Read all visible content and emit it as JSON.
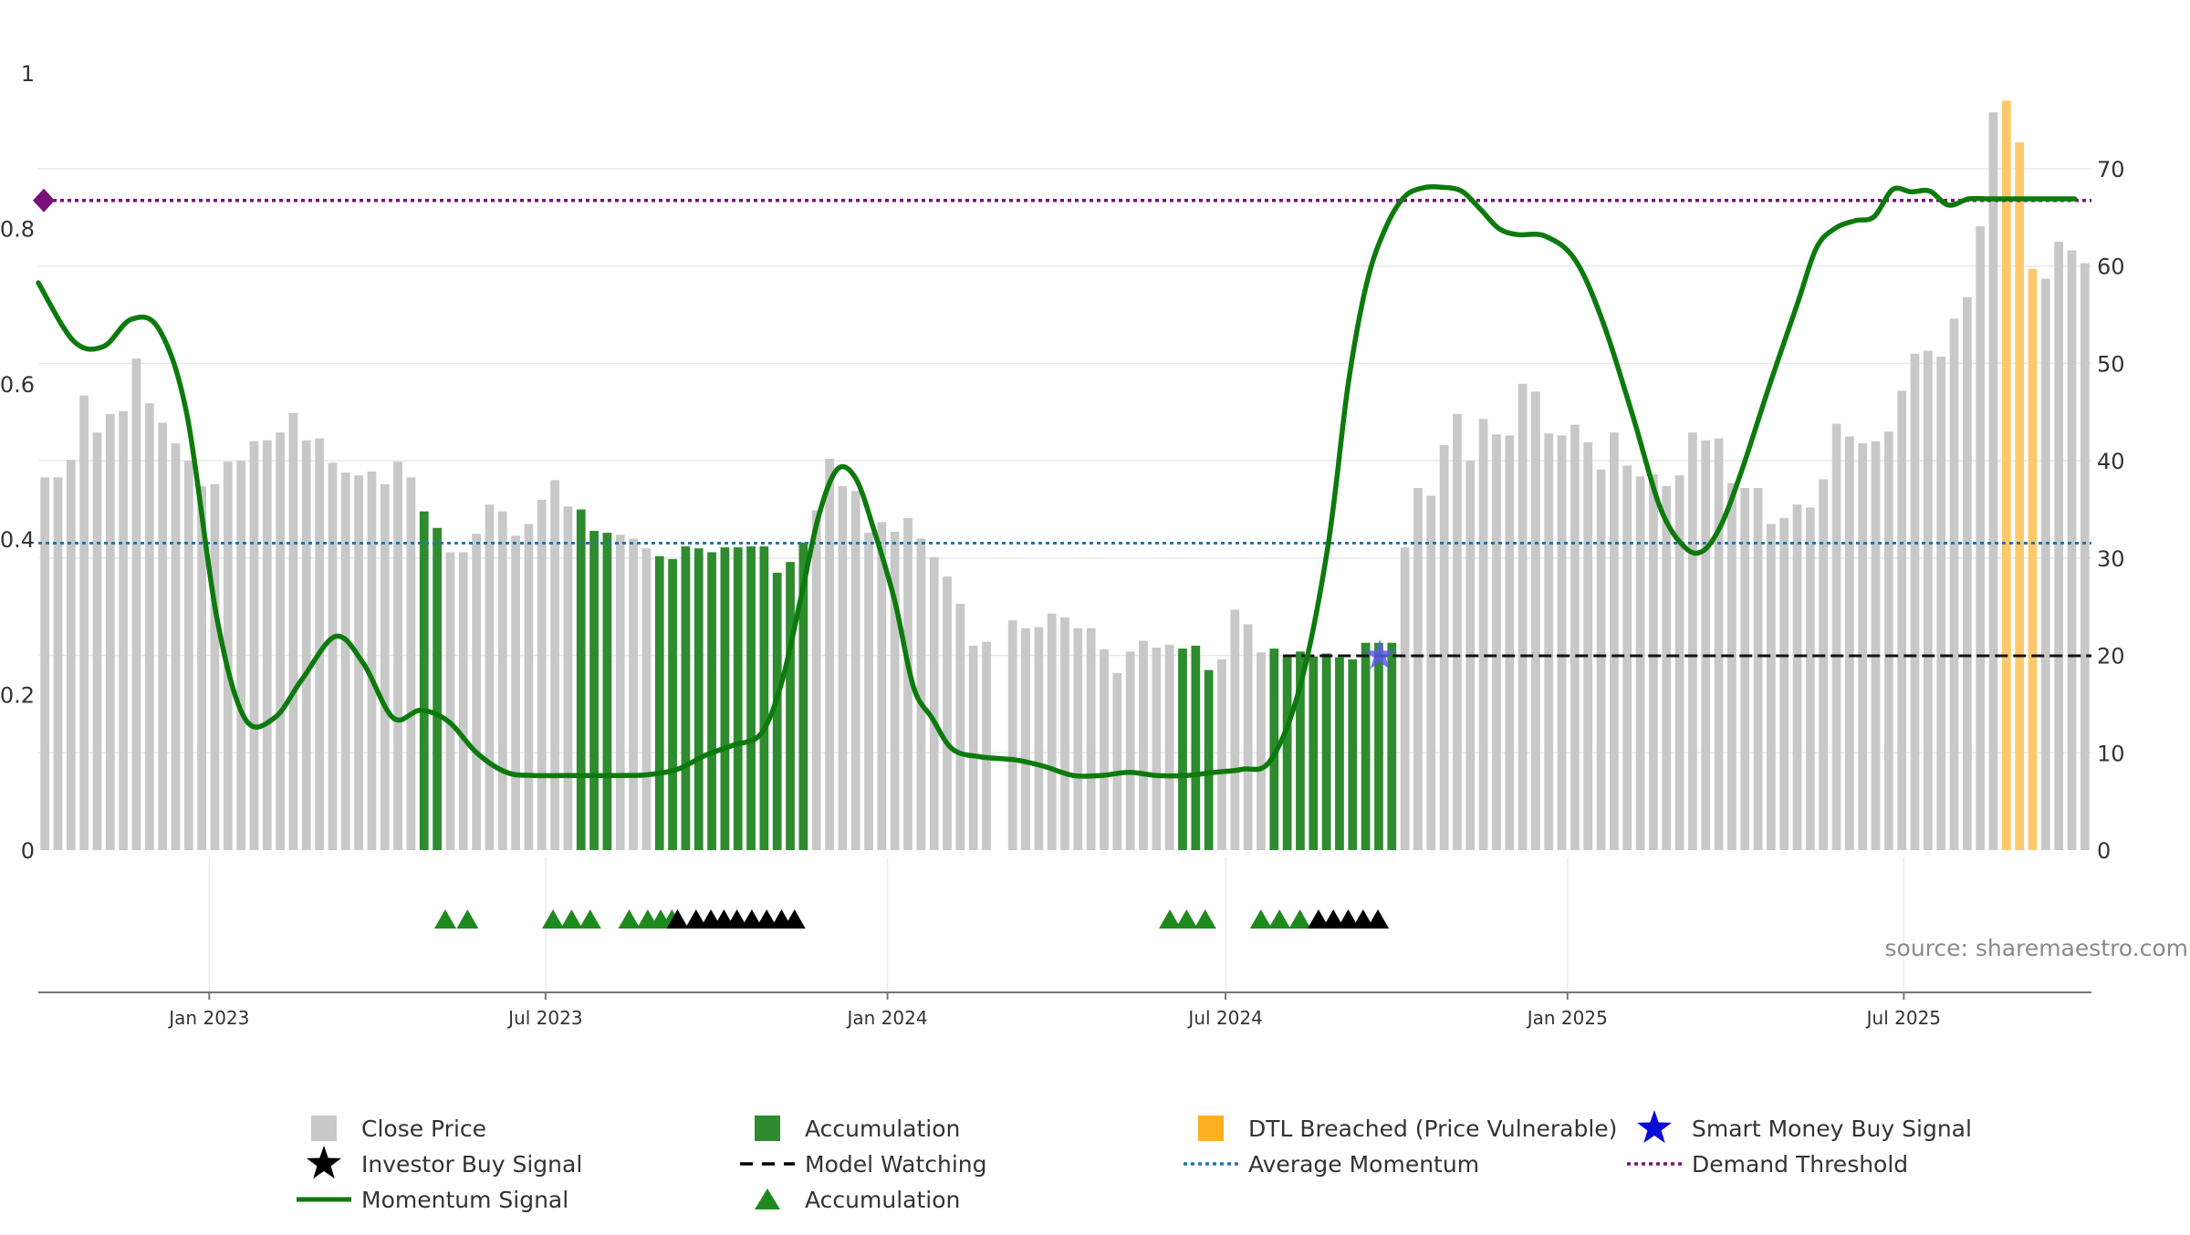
{
  "chart_data": {
    "type": "bar",
    "source_text": "source: sharemaestro.com",
    "axes": {
      "left": {
        "ticks": [
          "0",
          "0.2",
          "0.4",
          "0.6",
          "0.8",
          "1"
        ],
        "range": [
          0,
          1
        ]
      },
      "right": {
        "ticks": [
          "0",
          "10",
          "20",
          "30",
          "40",
          "50",
          "60",
          "70"
        ],
        "range": [
          0,
          80
        ]
      },
      "x_ticks": [
        "Jan 2023",
        "Jul 2023",
        "Jan 2024",
        "Jul 2024",
        "Jan 2025",
        "Jul 2025"
      ],
      "x_start": "2022-10-01",
      "x_end": "2025-10-10"
    },
    "colors": {
      "close_price": "#c8c8c8",
      "accumulation": "#2e8b2e",
      "dtl_breached": "#ffc96b",
      "momentum": "#0c7a0c",
      "average_momentum": "#1f77b4",
      "demand_threshold": "#7a1178",
      "smart_money": "#0b0bd6",
      "investor_signal": "#000000"
    },
    "close_price": [
      38.3,
      38.3,
      40.1,
      46.7,
      42.9,
      44.8,
      45.1,
      50.5,
      45.9,
      43.9,
      41.8,
      40.0,
      37.4,
      37.6,
      39.9,
      40.0,
      42.0,
      42.1,
      42.9,
      44.9,
      42.1,
      42.3,
      39.8,
      38.8,
      38.5,
      38.9,
      37.6,
      39.9,
      38.3,
      34.8,
      33.1,
      30.6,
      30.6,
      32.5,
      35.5,
      34.8,
      32.3,
      33.5,
      36.0,
      38.0,
      35.3,
      35.0,
      32.8,
      32.6,
      32.4,
      32.0,
      31.0,
      30.2,
      29.9,
      31.2,
      31.0,
      30.6,
      31.1,
      31.1,
      31.2,
      31.2,
      28.5,
      29.6,
      31.6,
      34.9,
      40.2,
      37.4,
      36.9,
      32.6,
      33.7,
      32.7,
      34.1,
      32.0,
      30.1,
      28.1,
      25.3,
      21.0,
      21.4,
      null,
      23.6,
      22.8,
      22.9,
      24.3,
      23.9,
      22.8,
      22.8,
      20.6,
      18.2,
      20.4,
      21.5,
      20.8,
      21.1,
      20.7,
      21.0,
      18.5,
      19.6,
      24.7,
      23.2,
      20.3,
      20.7,
      20.1,
      20.4,
      19.9,
      20.2,
      19.8,
      19.6,
      21.3,
      21.3,
      21.3,
      31.1,
      37.2,
      36.4,
      41.6,
      44.8,
      40.0,
      44.3,
      42.7,
      42.6,
      47.9,
      47.1,
      42.8,
      42.6,
      43.7,
      41.9,
      39.1,
      42.9,
      39.5,
      38.4,
      38.6,
      37.4,
      38.5,
      42.9,
      42.1,
      42.3,
      37.7,
      37.2,
      37.2,
      33.5,
      34.1,
      35.5,
      35.2,
      38.1,
      43.8,
      42.5,
      41.8,
      42.0,
      43.0,
      47.2,
      51.0,
      51.3,
      50.7,
      54.6,
      56.8,
      64.1,
      75.8,
      77.0,
      72.7,
      59.7,
      58.7,
      62.5,
      61.6,
      60.3
    ],
    "bar_kind": "00000000000000000000000000000110000000000001110000111111111111000000000000000000000000000000000000000000000000000000000000000000000000000000000000000000000000000000000000000000000000000000000000000000000000000000000000000000000000000000000000000000000000000000000000000000000000000000000000000000000000000000000000000000000000000000000",
    "bar_kind_note_unused": "",
    "momentum_x": [
      "2022-10-01",
      "2022-10-20",
      "2022-11-05",
      "2022-11-20",
      "2022-12-05",
      "2022-12-20",
      "2023-01-05",
      "2023-01-20",
      "2023-02-05",
      "2023-02-20",
      "2023-03-10",
      "2023-03-25",
      "2023-04-10",
      "2023-04-25",
      "2023-05-10",
      "2023-05-25",
      "2023-06-10",
      "2023-06-25",
      "2023-07-10",
      "2023-07-25",
      "2023-08-10",
      "2023-08-25",
      "2023-09-10",
      "2023-09-25",
      "2023-10-10",
      "2023-10-25",
      "2023-11-05",
      "2023-11-15",
      "2023-11-25",
      "2023-12-05",
      "2023-12-15",
      "2023-12-25",
      "2024-01-05",
      "2024-01-15",
      "2024-01-25",
      "2024-02-05",
      "2024-02-20",
      "2024-03-10",
      "2024-03-25",
      "2024-04-10",
      "2024-04-25",
      "2024-05-10",
      "2024-05-25",
      "2024-06-10",
      "2024-06-25",
      "2024-07-10",
      "2024-07-25",
      "2024-08-10",
      "2024-08-25",
      "2024-09-05",
      "2024-09-15",
      "2024-09-25",
      "2024-10-05",
      "2024-10-15",
      "2024-10-25",
      "2024-11-05",
      "2024-11-15",
      "2024-11-25",
      "2024-12-05",
      "2024-12-20",
      "2025-01-05",
      "2025-01-20",
      "2025-02-05",
      "2025-02-20",
      "2025-03-05",
      "2025-03-15",
      "2025-03-25",
      "2025-04-05",
      "2025-04-20",
      "2025-05-05",
      "2025-05-15",
      "2025-05-25",
      "2025-06-05",
      "2025-06-15",
      "2025-06-25",
      "2025-07-05",
      "2025-07-15",
      "2025-07-25",
      "2025-08-05",
      "2025-08-15",
      "2025-08-22",
      "2025-08-28",
      "2025-09-05",
      "2025-09-12",
      "2025-09-20",
      "2025-10-01"
    ],
    "momentum_y": [
      0.73,
      0.655,
      0.648,
      0.683,
      0.67,
      0.56,
      0.3,
      0.17,
      0.17,
      0.22,
      0.275,
      0.24,
      0.17,
      0.18,
      0.165,
      0.125,
      0.1,
      0.096,
      0.096,
      0.096,
      0.096,
      0.097,
      0.104,
      0.122,
      0.135,
      0.15,
      0.215,
      0.32,
      0.43,
      0.49,
      0.478,
      0.41,
      0.32,
      0.21,
      0.17,
      0.13,
      0.12,
      0.116,
      0.108,
      0.096,
      0.096,
      0.1,
      0.096,
      0.096,
      0.1,
      0.104,
      0.115,
      0.21,
      0.39,
      0.6,
      0.73,
      0.8,
      0.84,
      0.852,
      0.853,
      0.848,
      0.825,
      0.8,
      0.792,
      0.79,
      0.76,
      0.68,
      0.56,
      0.44,
      0.39,
      0.385,
      0.42,
      0.49,
      0.6,
      0.705,
      0.775,
      0.8,
      0.81,
      0.815,
      0.85,
      0.847,
      0.848,
      0.83,
      0.838,
      0.838,
      0.838,
      0.838,
      0.838,
      0.838,
      0.838,
      0.838
    ],
    "average_momentum": 0.395,
    "demand_threshold": 0.836,
    "model_watching": {
      "from": "2024-08-01",
      "to": "2025-10-05",
      "value": 0.25
    },
    "smart_money_signal": {
      "x": "2024-09-22",
      "y": 0.25
    },
    "accumulation_markers": [
      "2023-05-08",
      "2023-05-20",
      "2023-07-05",
      "2023-07-15",
      "2023-07-25",
      "2023-08-15",
      "2023-08-25",
      "2023-09-01",
      "2023-09-07",
      "2024-06-01",
      "2024-06-10",
      "2024-06-20",
      "2024-07-20",
      "2024-07-30",
      "2024-08-10"
    ],
    "investor_signal_markers": [
      "2023-09-10",
      "2023-09-20",
      "2023-09-28",
      "2023-10-05",
      "2023-10-12",
      "2023-10-20",
      "2023-10-28",
      "2023-11-05",
      "2023-11-12",
      "2024-08-20",
      "2024-08-28",
      "2024-09-05",
      "2024-09-13",
      "2024-09-21"
    ],
    "demand_marker_label": "",
    "legend": [
      {
        "label": "Close Price",
        "symbol": "square",
        "color": "#c8c8c8"
      },
      {
        "label": "Accumulation",
        "symbol": "square",
        "color": "#2e8b2e"
      },
      {
        "label": "DTL Breached (Price Vulnerable)",
        "symbol": "square",
        "color": "#ffb020"
      },
      {
        "label": "Smart Money Buy Signal",
        "symbol": "star",
        "color": "#0b0bd6"
      },
      {
        "label": "Investor Buy Signal",
        "symbol": "star",
        "color": "#000000"
      },
      {
        "label": "Model Watching",
        "symbol": "dash",
        "color": "#000000"
      },
      {
        "label": "Average Momentum",
        "symbol": "dotline",
        "color": "#1f77b4"
      },
      {
        "label": "Demand Threshold",
        "symbol": "dotline",
        "color": "#7a1178"
      },
      {
        "label": "Momentum Signal",
        "symbol": "line",
        "color": "#0c7a0c"
      },
      {
        "label": "Accumulation",
        "symbol": "triangle",
        "color": "#1e8a1e"
      }
    ]
  }
}
